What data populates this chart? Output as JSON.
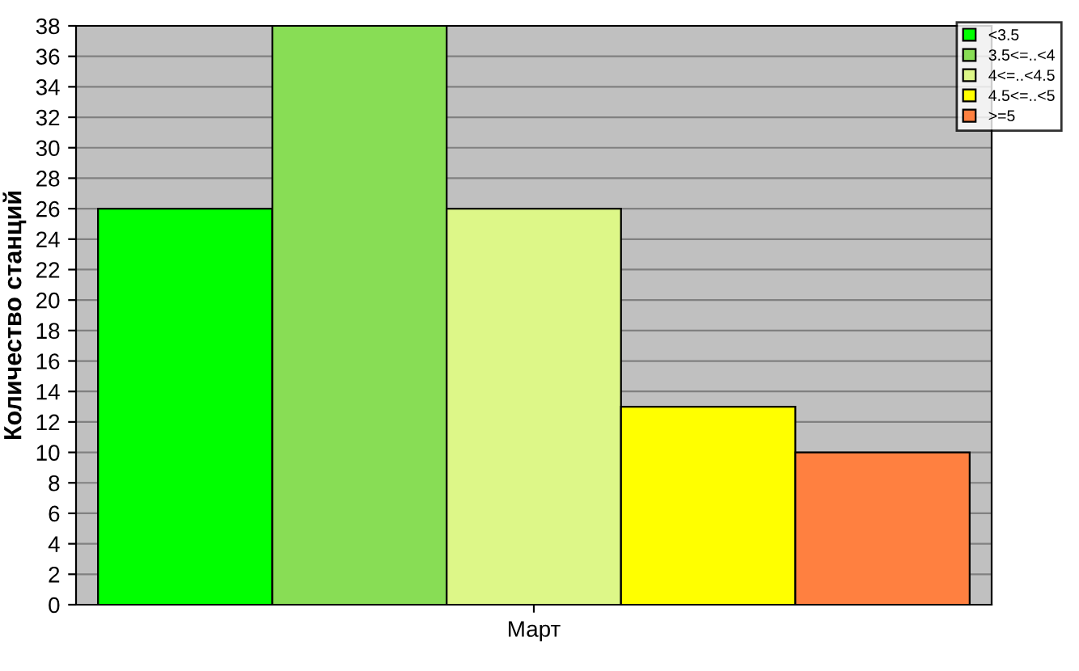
{
  "chart_data": {
    "type": "bar",
    "ylabel": "Количество станций",
    "categories": [
      "Март"
    ],
    "series": [
      {
        "name": "<3.5",
        "color": "#00ff00",
        "values": [
          26
        ]
      },
      {
        "name": "3.5<=..<4",
        "color": "#88dd55",
        "values": [
          38
        ]
      },
      {
        "name": "4<=..<4.5",
        "color": "#ddf788",
        "values": [
          26
        ]
      },
      {
        "name": "4.5<=..<5",
        "color": "#ffff00",
        "values": [
          13
        ]
      },
      {
        "name": ">=5",
        "color": "#ff8040",
        "values": [
          10
        ]
      }
    ],
    "ylim": [
      0,
      38
    ],
    "yticks": [
      0,
      2,
      4,
      6,
      8,
      10,
      12,
      14,
      16,
      18,
      20,
      22,
      24,
      26,
      28,
      30,
      32,
      34,
      36,
      38
    ],
    "grid": "y",
    "legend": "top right"
  }
}
